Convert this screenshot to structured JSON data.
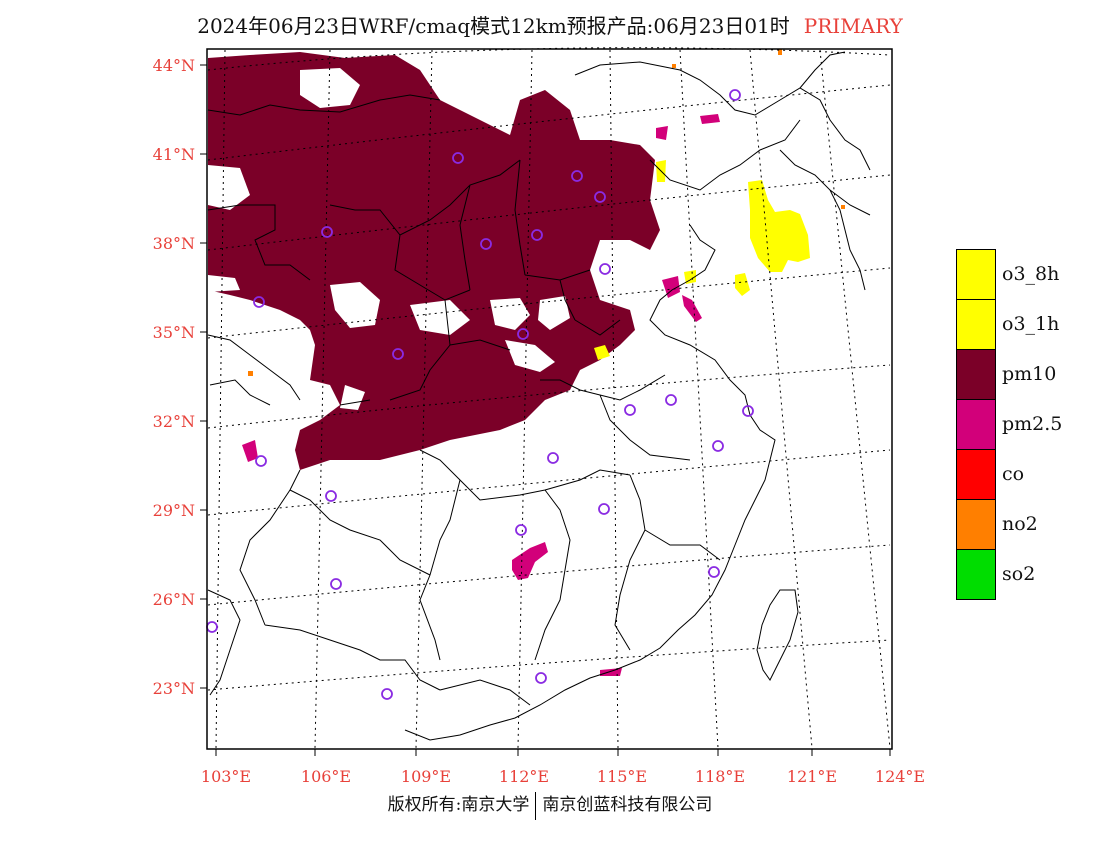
{
  "title": {
    "main": "2024年06月23日WRF/cmaq模式12km预报产品:06月23日01时",
    "tag": "PRIMARY"
  },
  "axes": {
    "lat_labels": [
      "44°N",
      "41°N",
      "38°N",
      "35°N",
      "32°N",
      "29°N",
      "26°N",
      "23°N"
    ],
    "lon_labels": [
      "103°E",
      "106°E",
      "109°E",
      "112°E",
      "115°E",
      "118°E",
      "121°E",
      "124°E"
    ]
  },
  "legend": {
    "items": [
      {
        "label": "o3_8h",
        "color": "#ffff00"
      },
      {
        "label": "o3_1h",
        "color": "#ffff00"
      },
      {
        "label": "pm10",
        "color": "#7b0028"
      },
      {
        "label": "pm2.5",
        "color": "#d2007a"
      },
      {
        "label": "co",
        "color": "#ff0000"
      },
      {
        "label": "no2",
        "color": "#ff7f00"
      },
      {
        "label": "so2",
        "color": "#00dd00"
      }
    ]
  },
  "colors": {
    "pm10": "#7b0028",
    "pm25": "#d2007a",
    "o3": "#ffff00",
    "no2": "#ff7f00",
    "station": "#8a2be2",
    "tick": "#e8413a"
  },
  "footer": {
    "left": "版权所有:南京大学",
    "right": "南京创蓝科技有限公司"
  }
}
